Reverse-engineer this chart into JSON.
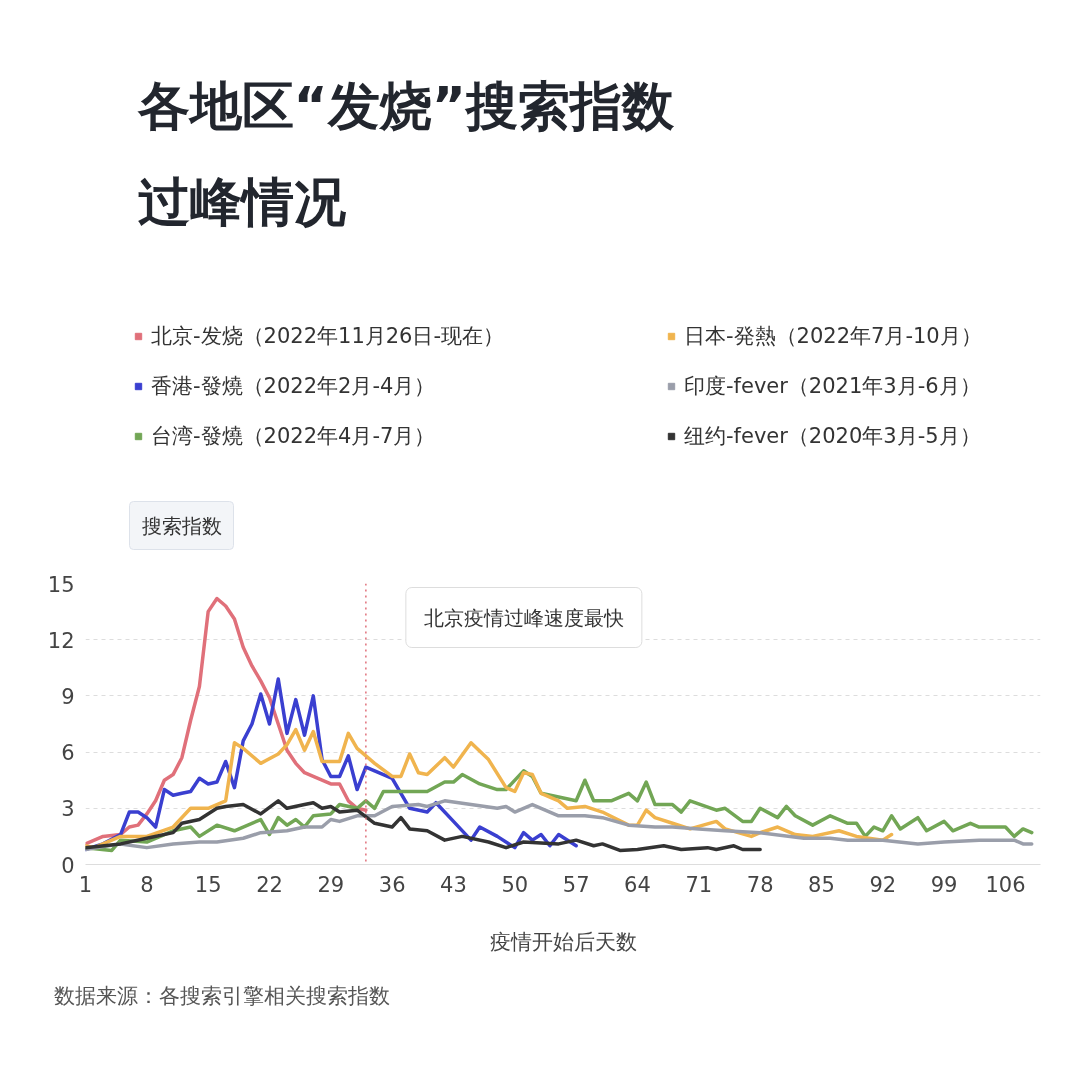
{
  "chart_data": {
    "type": "line",
    "title": "各地区“发烧”搜索指数过峰情况",
    "xlabel": "疫情开始后天数",
    "ylabel": "搜索指数",
    "xlim": [
      1,
      110
    ],
    "xticks": [
      1,
      8,
      15,
      22,
      29,
      36,
      43,
      50,
      57,
      64,
      71,
      78,
      85,
      92,
      99,
      106
    ],
    "ylim": [
      0,
      15
    ],
    "yticks": [
      0,
      3,
      6,
      9,
      12,
      15
    ],
    "grid": "y",
    "legend": "top",
    "marker": "none",
    "line_style": "solid",
    "series": [
      {
        "name": "北京-发烧（2022年11月26日-现在）",
        "color": "#e0707a",
        "x": [
          1,
          3,
          5,
          6,
          7,
          8,
          9,
          10,
          11,
          12,
          13,
          14,
          15,
          16,
          17,
          18,
          19,
          20,
          21,
          22,
          23,
          24,
          25,
          26,
          27,
          28,
          29,
          30,
          31,
          32,
          33
        ],
        "values": [
          1.1,
          1.5,
          1.6,
          2.0,
          2.1,
          2.7,
          3.4,
          4.5,
          4.8,
          5.7,
          7.7,
          9.5,
          13.5,
          14.2,
          13.8,
          13.1,
          11.6,
          10.6,
          9.8,
          8.9,
          7.5,
          6.1,
          5.4,
          4.9,
          4.7,
          4.5,
          4.3,
          4.3,
          3.4,
          3.0,
          2.9
        ]
      },
      {
        "name": "香港-發燒（2022年2月-4月）",
        "color": "#3a3fd0",
        "x": [
          1,
          3,
          5,
          6,
          7,
          8,
          9,
          10,
          11,
          12,
          13,
          14,
          15,
          16,
          17,
          18,
          19,
          20,
          21,
          22,
          23,
          24,
          25,
          26,
          27,
          28,
          29,
          30,
          31,
          32,
          33,
          34,
          36,
          38,
          40,
          41,
          43,
          45,
          46,
          48,
          50,
          51,
          52,
          53,
          54,
          55,
          57
        ],
        "values": [
          0.8,
          1.1,
          1.6,
          2.8,
          2.8,
          2.5,
          2.0,
          4.0,
          3.7,
          3.8,
          3.9,
          4.6,
          4.3,
          4.4,
          5.5,
          4.1,
          6.6,
          7.5,
          9.1,
          7.5,
          9.9,
          7.0,
          8.8,
          6.9,
          9.0,
          5.6,
          4.7,
          4.7,
          5.8,
          4.0,
          5.2,
          5.0,
          4.6,
          3.0,
          2.8,
          3.3,
          2.3,
          1.3,
          2.0,
          1.5,
          0.9,
          1.7,
          1.3,
          1.6,
          1.0,
          1.6,
          1.0
        ]
      },
      {
        "name": "台湾-發燒（2022年4月-7月）",
        "color": "#72a655",
        "x": [
          1,
          4,
          5,
          8,
          11,
          13,
          14,
          16,
          18,
          21,
          22,
          23,
          24,
          25,
          26,
          27,
          29,
          30,
          32,
          33,
          34,
          35,
          38,
          40,
          42,
          43,
          44,
          46,
          48,
          49,
          51,
          52,
          53,
          55,
          57,
          58,
          59,
          61,
          63,
          64,
          65,
          66,
          68,
          69,
          70,
          73,
          74,
          76,
          77,
          78,
          80,
          81,
          82,
          84,
          86,
          88,
          89,
          90,
          91,
          92,
          93,
          94,
          96,
          97,
          99,
          100,
          102,
          103,
          106,
          107,
          108,
          109
        ],
        "values": [
          0.9,
          0.75,
          1.3,
          1.2,
          1.8,
          2.0,
          1.5,
          2.1,
          1.8,
          2.4,
          1.6,
          2.5,
          2.1,
          2.4,
          2.0,
          2.6,
          2.7,
          3.2,
          3.0,
          3.4,
          3.0,
          3.9,
          3.9,
          3.9,
          4.4,
          4.4,
          4.8,
          4.3,
          4.0,
          4.0,
          5.0,
          4.7,
          3.8,
          3.6,
          3.4,
          4.5,
          3.4,
          3.4,
          3.8,
          3.4,
          4.4,
          3.2,
          3.2,
          2.8,
          3.4,
          2.9,
          3.0,
          2.3,
          2.3,
          3.0,
          2.5,
          3.1,
          2.6,
          2.1,
          2.6,
          2.2,
          2.2,
          1.5,
          2.0,
          1.8,
          2.6,
          1.9,
          2.5,
          1.8,
          2.3,
          1.8,
          2.2,
          2.0,
          2.0,
          1.5,
          1.9,
          1.7
        ]
      },
      {
        "name": "日本-発熱（2022年7月-10月）",
        "color": "#f0b44e",
        "x": [
          1,
          2,
          5,
          8,
          11,
          13,
          15,
          17,
          18,
          19,
          21,
          23,
          24,
          25,
          26,
          27,
          28,
          30,
          31,
          32,
          34,
          36,
          37,
          38,
          39,
          40,
          42,
          43,
          45,
          47,
          49,
          50,
          51,
          52,
          53,
          55,
          56,
          58,
          60,
          63,
          64,
          65,
          66,
          68,
          70,
          73,
          74,
          77,
          78,
          80,
          82,
          84,
          87,
          89,
          92,
          93
        ],
        "values": [
          1.0,
          0.9,
          1.5,
          1.5,
          2.0,
          3.0,
          3.0,
          3.4,
          6.5,
          6.2,
          5.4,
          5.9,
          6.4,
          7.2,
          6.1,
          7.1,
          5.5,
          5.5,
          7.0,
          6.2,
          5.4,
          4.7,
          4.7,
          5.9,
          4.9,
          4.8,
          5.7,
          5.2,
          6.5,
          5.6,
          4.1,
          3.9,
          4.9,
          4.8,
          3.8,
          3.4,
          3.0,
          3.1,
          2.8,
          2.1,
          2.1,
          2.9,
          2.5,
          2.2,
          1.9,
          2.3,
          1.9,
          1.5,
          1.7,
          2.0,
          1.6,
          1.5,
          1.8,
          1.5,
          1.3,
          1.6
        ]
      },
      {
        "name": "印度-fever（2021年3月-6月）",
        "color": "#9a9eaa",
        "x": [
          1,
          5,
          8,
          11,
          14,
          16,
          19,
          21,
          24,
          26,
          28,
          29,
          30,
          32,
          34,
          36,
          39,
          40,
          42,
          45,
          48,
          49,
          50,
          52,
          53,
          55,
          58,
          60,
          63,
          66,
          68,
          71,
          74,
          78,
          83,
          86,
          88,
          92,
          96,
          99,
          103,
          107,
          108,
          109
        ],
        "values": [
          0.8,
          1.1,
          0.9,
          1.1,
          1.2,
          1.2,
          1.4,
          1.7,
          1.8,
          2.0,
          2.0,
          2.4,
          2.3,
          2.6,
          2.6,
          3.1,
          3.2,
          3.1,
          3.4,
          3.2,
          3.0,
          3.1,
          2.8,
          3.2,
          3.0,
          2.6,
          2.6,
          2.5,
          2.1,
          2.0,
          2.0,
          1.9,
          1.8,
          1.7,
          1.4,
          1.4,
          1.3,
          1.3,
          1.1,
          1.2,
          1.3,
          1.3,
          1.1,
          1.1
        ]
      },
      {
        "name": "纽约-fever（2020年3月-5月）",
        "color": "#333333",
        "x": [
          1,
          5,
          8,
          11,
          12,
          14,
          16,
          17,
          19,
          21,
          23,
          24,
          26,
          27,
          28,
          29,
          30,
          32,
          34,
          36,
          37,
          38,
          40,
          42,
          44,
          47,
          49,
          51,
          55,
          57,
          59,
          60,
          62,
          64,
          67,
          69,
          72,
          73,
          75,
          76,
          78
        ],
        "values": [
          0.9,
          1.1,
          1.4,
          1.7,
          2.2,
          2.4,
          3.0,
          3.1,
          3.2,
          2.7,
          3.4,
          3.0,
          3.2,
          3.3,
          3.0,
          3.1,
          2.8,
          2.9,
          2.2,
          2.0,
          2.5,
          1.9,
          1.8,
          1.3,
          1.5,
          1.2,
          0.9,
          1.2,
          1.1,
          1.3,
          1.0,
          1.1,
          0.75,
          0.8,
          1.0,
          0.8,
          0.9,
          0.8,
          1.0,
          0.8,
          0.8
        ]
      }
    ],
    "ref_lines": [
      {
        "axis": "x",
        "value": 33,
        "label": "北京疫情过峰速度最快",
        "color": "#e0707a",
        "line_style": "dotted"
      }
    ],
    "annotations": [
      "数据来源：各搜索引擎相关搜索指数"
    ]
  }
}
